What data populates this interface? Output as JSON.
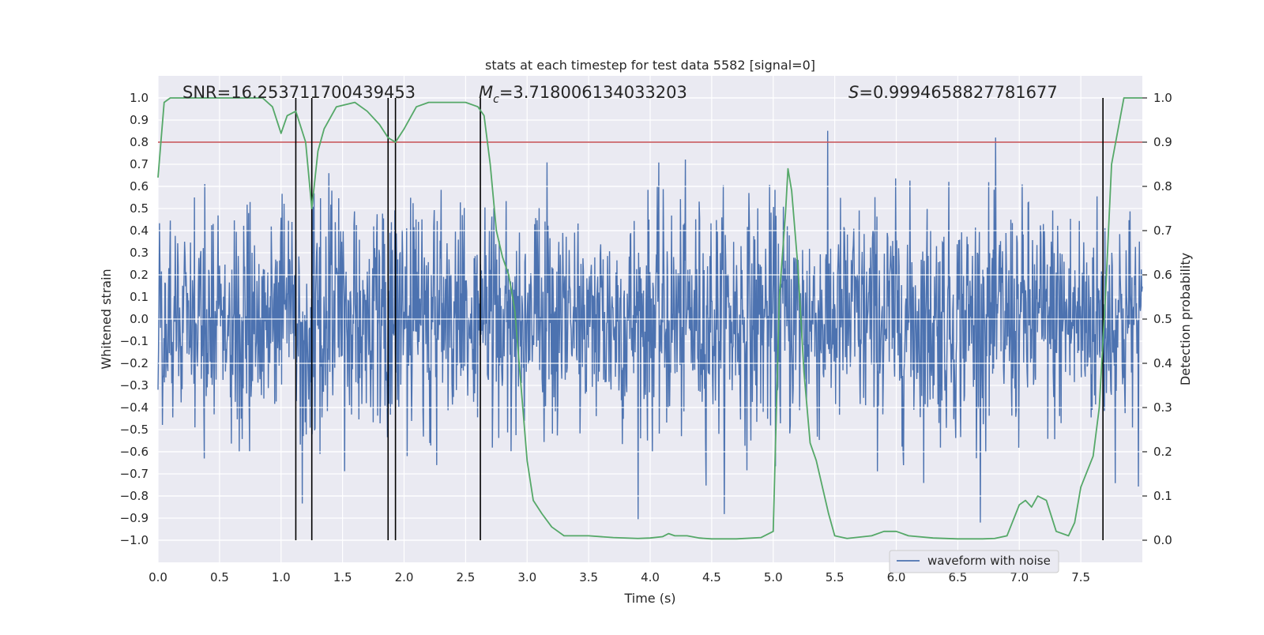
{
  "chart_data": {
    "type": "line",
    "title": "stats at each timestep for test data 5582 [signal=0]",
    "xlabel": "Time (s)",
    "ylabel": "Whitened strain",
    "y2label": "Detection probability",
    "xlim": [
      0,
      8
    ],
    "ylim": [
      -1.1,
      1.1
    ],
    "y2lim": [
      -0.05,
      1.05
    ],
    "xticks": [
      0.0,
      0.5,
      1.0,
      1.5,
      2.0,
      2.5,
      3.0,
      3.5,
      4.0,
      4.5,
      5.0,
      5.5,
      6.0,
      6.5,
      7.0,
      7.5
    ],
    "yticks": [
      1.0,
      0.9,
      0.8,
      0.7,
      0.6,
      0.5,
      0.4,
      0.3,
      0.2,
      0.1,
      0.0,
      -0.1,
      -0.2,
      -0.3,
      -0.4,
      -0.5,
      -0.6,
      -0.7,
      -0.8,
      -0.9,
      -1.0
    ],
    "y2ticks": [
      1.0,
      0.9,
      0.8,
      0.7,
      0.6,
      0.5,
      0.4,
      0.3,
      0.2,
      0.1,
      0.0
    ],
    "annotations": {
      "snr": "SNR=16.253711700439453",
      "mc_symbol": "M",
      "mc_sub": "c",
      "mc_value": "=3.718006134033203",
      "s_symbol": "S",
      "s_value": "=0.9994658827781677"
    },
    "legend": {
      "label": "waveform with noise",
      "location": "lower-right"
    },
    "threshold": {
      "value": 0.9,
      "axis": "y2",
      "color": "#c44e52"
    },
    "vlines": [
      1.12,
      1.25,
      1.87,
      1.93,
      2.62,
      7.68
    ],
    "waveform": {
      "name": "waveform with noise",
      "color": "#4c72b0",
      "x_start": 0.0,
      "x_end": 8.0,
      "samples": 2000,
      "seed": 5582,
      "typical_amplitude": 0.4,
      "max_positive": 0.91,
      "min_negative": -0.92
    },
    "probability": {
      "name": "detection probability",
      "color": "#55a868",
      "x": [
        0.0,
        0.05,
        0.1,
        0.2,
        0.3,
        0.5,
        0.7,
        0.85,
        0.93,
        1.0,
        1.05,
        1.12,
        1.2,
        1.25,
        1.3,
        1.35,
        1.45,
        1.6,
        1.7,
        1.8,
        1.87,
        1.93,
        2.0,
        2.1,
        2.2,
        2.4,
        2.5,
        2.6,
        2.65,
        2.7,
        2.75,
        2.8,
        2.85,
        2.9,
        2.95,
        3.0,
        3.05,
        3.12,
        3.2,
        3.3,
        3.35,
        3.5,
        3.7,
        3.9,
        4.0,
        4.1,
        4.15,
        4.2,
        4.3,
        4.4,
        4.5,
        4.7,
        4.9,
        5.0,
        5.05,
        5.1,
        5.12,
        5.15,
        5.2,
        5.25,
        5.3,
        5.35,
        5.45,
        5.5,
        5.6,
        5.8,
        5.9,
        6.0,
        6.1,
        6.3,
        6.5,
        6.7,
        6.8,
        6.9,
        7.0,
        7.05,
        7.1,
        7.15,
        7.22,
        7.3,
        7.4,
        7.45,
        7.5,
        7.6,
        7.65,
        7.7,
        7.75,
        7.85,
        7.9,
        8.0
      ],
      "y": [
        0.82,
        0.99,
        1.0,
        1.0,
        1.0,
        1.0,
        1.0,
        1.0,
        0.98,
        0.92,
        0.96,
        0.97,
        0.9,
        0.75,
        0.88,
        0.93,
        0.98,
        0.99,
        0.97,
        0.94,
        0.91,
        0.9,
        0.93,
        0.98,
        0.99,
        0.99,
        0.99,
        0.98,
        0.96,
        0.85,
        0.7,
        0.64,
        0.6,
        0.52,
        0.35,
        0.18,
        0.09,
        0.06,
        0.03,
        0.01,
        0.01,
        0.01,
        0.006,
        0.004,
        0.005,
        0.008,
        0.015,
        0.01,
        0.01,
        0.005,
        0.003,
        0.003,
        0.006,
        0.02,
        0.55,
        0.74,
        0.84,
        0.79,
        0.62,
        0.38,
        0.22,
        0.18,
        0.06,
        0.01,
        0.004,
        0.01,
        0.02,
        0.02,
        0.01,
        0.005,
        0.003,
        0.003,
        0.004,
        0.01,
        0.08,
        0.09,
        0.075,
        0.1,
        0.09,
        0.02,
        0.01,
        0.04,
        0.12,
        0.19,
        0.3,
        0.55,
        0.85,
        1.0,
        1.0,
        1.0
      ]
    }
  }
}
